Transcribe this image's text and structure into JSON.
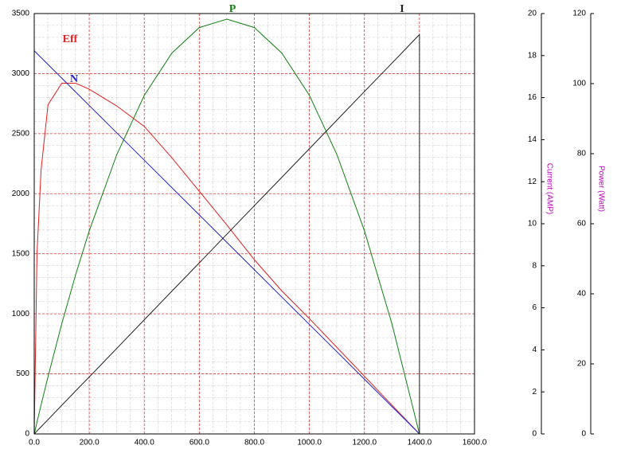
{
  "chart_data": {
    "type": "line",
    "x": [
      0,
      10,
      25,
      50,
      100,
      150,
      200,
      300,
      400,
      500,
      600,
      700,
      800,
      900,
      1000,
      1100,
      1200,
      1300,
      1400
    ],
    "xlim": [
      0,
      1600
    ],
    "xticks": [
      {
        "value": 0,
        "label": "0.0"
      },
      {
        "value": 200,
        "label": "200.0"
      },
      {
        "value": 400,
        "label": "400.0"
      },
      {
        "value": 600,
        "label": "600.0"
      },
      {
        "value": 800,
        "label": "800.0"
      },
      {
        "value": 1000,
        "label": "1000.0"
      },
      {
        "value": 1200,
        "label": "1200.0"
      },
      {
        "value": 1400,
        "label": "1400.0"
      },
      {
        "value": 1600,
        "label": "1600.0"
      }
    ],
    "ylim": [
      0,
      3500
    ],
    "yticks": [
      0,
      500,
      1000,
      1500,
      2000,
      2500,
      3000,
      3500
    ],
    "y2label": "Current (AMP)",
    "y2lim": [
      0,
      20
    ],
    "y2ticks": [
      0,
      2,
      4,
      6,
      8,
      10,
      12,
      14,
      16,
      18,
      20
    ],
    "y3label": "Power (Watt)",
    "y3lim": [
      0,
      120
    ],
    "y3ticks": [
      0,
      20,
      40,
      60,
      80,
      100,
      120
    ],
    "grid": true,
    "series": [
      {
        "name": "Eff",
        "color": "#e02020",
        "axis": "y",
        "values": [
          0,
          1500,
          2200,
          2740,
          2920,
          2920,
          2870,
          2730,
          2560,
          2300,
          2020,
          1740,
          1450,
          1190,
          960,
          720,
          480,
          240,
          0
        ]
      },
      {
        "name": "N",
        "color": "#2020d0",
        "axis": "y",
        "values": [
          3190,
          3167,
          3133,
          3076,
          2962,
          2848,
          2734,
          2506,
          2279,
          2051,
          1823,
          1595,
          1367,
          1139,
          911,
          684,
          456,
          228,
          0
        ]
      },
      {
        "name": "P",
        "color": "#108010",
        "axis": "y3",
        "values": [
          0,
          3.36,
          8.31,
          16.31,
          31.41,
          45.31,
          57.99,
          79.74,
          96.65,
          108.7,
          116.0,
          118.4,
          116.0,
          108.7,
          96.65,
          79.74,
          57.99,
          31.41,
          0
        ]
      },
      {
        "name": "I",
        "color": "#202020",
        "axis": "y2",
        "values": [
          0,
          0.14,
          0.34,
          0.68,
          1.36,
          2.04,
          2.71,
          4.07,
          5.43,
          6.79,
          8.14,
          9.5,
          10.86,
          12.21,
          13.57,
          14.93,
          16.29,
          17.64,
          19.0
        ]
      }
    ]
  }
}
